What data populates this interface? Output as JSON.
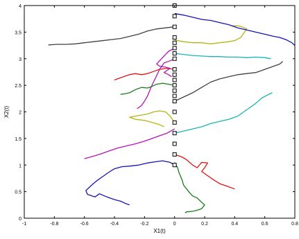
{
  "chart_data": {
    "type": "line",
    "title": "",
    "xlabel": "X1(t)",
    "ylabel": "X2(t)",
    "xlim": [
      -1,
      0.8
    ],
    "ylim": [
      0,
      4
    ],
    "xticks": [
      "-1",
      "-0.8",
      "-0.6",
      "-0.4",
      "-0.2",
      "0",
      "0.2",
      "0.4",
      "0.6",
      "0.8"
    ],
    "yticks": [
      "0",
      "0.5",
      "1",
      "1.5",
      "2",
      "2.5",
      "3",
      "3.5",
      "4"
    ],
    "grid": false,
    "legend": "none",
    "start_points": {
      "x": [
        0,
        0,
        0,
        0,
        0,
        0,
        0,
        0,
        0,
        0,
        0,
        0,
        0,
        0,
        0,
        0,
        0,
        0,
        0,
        0,
        0
      ],
      "y": [
        1.0,
        1.2,
        1.4,
        1.6,
        1.8,
        2.0,
        2.2,
        2.4,
        2.6,
        2.8,
        3.0,
        3.2,
        3.4,
        3.6,
        3.8,
        4.0,
        2.5,
        2.3,
        2.7,
        3.1,
        3.3
      ],
      "marker": "square-open"
    },
    "series": [
      {
        "color": "#1414b4",
        "points": [
          [
            0,
            1.0
          ],
          [
            -0.03,
            1.05
          ],
          [
            -0.08,
            1.08
          ],
          [
            -0.13,
            1.06
          ],
          [
            -0.18,
            1.04
          ],
          [
            -0.24,
            1.0
          ],
          [
            -0.3,
            0.98
          ],
          [
            -0.35,
            0.97
          ],
          [
            -0.4,
            0.93
          ],
          [
            -0.44,
            0.86
          ],
          [
            -0.48,
            0.78
          ],
          [
            -0.52,
            0.7
          ],
          [
            -0.56,
            0.6
          ],
          [
            -0.59,
            0.52
          ],
          [
            -0.58,
            0.45
          ],
          [
            -0.53,
            0.4
          ],
          [
            -0.5,
            0.46
          ],
          [
            -0.45,
            0.4
          ],
          [
            -0.4,
            0.35
          ],
          [
            -0.36,
            0.32
          ],
          [
            -0.32,
            0.27
          ],
          [
            -0.3,
            0.25
          ]
        ]
      },
      {
        "color": "#1a7a1a",
        "points": [
          [
            0,
            1.05
          ],
          [
            0.02,
            0.95
          ],
          [
            0.03,
            0.85
          ],
          [
            0.05,
            0.72
          ],
          [
            0.06,
            0.62
          ],
          [
            0.08,
            0.55
          ],
          [
            0.1,
            0.48
          ],
          [
            0.12,
            0.42
          ],
          [
            0.15,
            0.38
          ],
          [
            0.18,
            0.3
          ],
          [
            0.2,
            0.25
          ],
          [
            0.18,
            0.18
          ],
          [
            0.15,
            0.15
          ],
          [
            0.12,
            0.13
          ],
          [
            0.08,
            0.12
          ],
          [
            0.07,
            0.1
          ]
        ]
      },
      {
        "color": "#e01414",
        "points": [
          [
            0,
            1.2
          ],
          [
            0.05,
            1.15
          ],
          [
            0.08,
            1.1
          ],
          [
            0.1,
            1.05
          ],
          [
            0.12,
            1.0
          ],
          [
            0.15,
            0.95
          ],
          [
            0.18,
            1.05
          ],
          [
            0.22,
            1.04
          ],
          [
            0.2,
            0.95
          ],
          [
            0.18,
            0.88
          ],
          [
            0.22,
            0.8
          ],
          [
            0.26,
            0.72
          ],
          [
            0.3,
            0.65
          ],
          [
            0.35,
            0.6
          ],
          [
            0.4,
            0.55
          ]
        ]
      },
      {
        "color": "#18b4b4",
        "points": [
          [
            0,
            1.6
          ],
          [
            0.06,
            1.64
          ],
          [
            0.12,
            1.68
          ],
          [
            0.18,
            1.72
          ],
          [
            0.24,
            1.78
          ],
          [
            0.3,
            1.82
          ],
          [
            0.36,
            1.86
          ],
          [
            0.42,
            1.92
          ],
          [
            0.46,
            2.0
          ],
          [
            0.5,
            2.08
          ],
          [
            0.54,
            2.16
          ],
          [
            0.58,
            2.26
          ],
          [
            0.62,
            2.32
          ],
          [
            0.65,
            2.36
          ]
        ]
      },
      {
        "color": "#b414b4",
        "points": [
          [
            0,
            1.68
          ],
          [
            -0.05,
            1.6
          ],
          [
            -0.1,
            1.55
          ],
          [
            -0.15,
            1.5
          ],
          [
            -0.2,
            1.45
          ],
          [
            -0.26,
            1.4
          ],
          [
            -0.32,
            1.36
          ],
          [
            -0.38,
            1.32
          ],
          [
            -0.44,
            1.26
          ],
          [
            -0.5,
            1.2
          ],
          [
            -0.56,
            1.15
          ],
          [
            -0.6,
            1.12
          ]
        ]
      },
      {
        "color": "#b4b414",
        "points": [
          [
            0,
            1.8
          ],
          [
            -0.03,
            1.92
          ],
          [
            -0.06,
            2.0
          ],
          [
            -0.1,
            2.02
          ],
          [
            -0.14,
            2.0
          ],
          [
            -0.18,
            1.96
          ],
          [
            -0.22,
            1.94
          ],
          [
            -0.26,
            1.92
          ],
          [
            -0.3,
            1.9
          ],
          [
            -0.26,
            1.86
          ],
          [
            -0.2,
            1.84
          ],
          [
            -0.15,
            1.8
          ],
          [
            -0.1,
            1.76
          ],
          [
            -0.07,
            1.72
          ]
        ]
      },
      {
        "color": "#b414b4",
        "points": [
          [
            0,
            3.0
          ],
          [
            -0.03,
            2.96
          ],
          [
            -0.07,
            2.92
          ],
          [
            -0.1,
            2.8
          ],
          [
            -0.12,
            2.68
          ],
          [
            -0.14,
            2.56
          ],
          [
            -0.16,
            2.44
          ],
          [
            -0.18,
            2.3
          ],
          [
            -0.2,
            2.2
          ],
          [
            -0.22,
            2.12
          ],
          [
            -0.25,
            2.06
          ]
        ]
      },
      {
        "color": "#1a7a1a",
        "points": [
          [
            0,
            2.5
          ],
          [
            -0.04,
            2.52
          ],
          [
            -0.08,
            2.54
          ],
          [
            -0.12,
            2.52
          ],
          [
            -0.15,
            2.48
          ],
          [
            -0.18,
            2.45
          ],
          [
            -0.22,
            2.46
          ],
          [
            -0.26,
            2.42
          ],
          [
            -0.3,
            2.36
          ],
          [
            -0.33,
            2.34
          ],
          [
            -0.36,
            2.33
          ]
        ]
      },
      {
        "color": "#e01414",
        "points": [
          [
            0,
            2.8
          ],
          [
            -0.05,
            2.82
          ],
          [
            -0.1,
            2.8
          ],
          [
            -0.14,
            2.76
          ],
          [
            -0.18,
            2.72
          ],
          [
            -0.22,
            2.7
          ],
          [
            -0.26,
            2.72
          ],
          [
            -0.3,
            2.7
          ],
          [
            -0.34,
            2.66
          ],
          [
            -0.38,
            2.62
          ],
          [
            -0.4,
            2.6
          ]
        ]
      },
      {
        "color": "#404040",
        "points": [
          [
            0,
            2.2
          ],
          [
            0.06,
            2.28
          ],
          [
            0.12,
            2.36
          ],
          [
            0.18,
            2.46
          ],
          [
            0.24,
            2.56
          ],
          [
            0.3,
            2.62
          ],
          [
            0.36,
            2.66
          ],
          [
            0.42,
            2.7
          ],
          [
            0.48,
            2.72
          ],
          [
            0.54,
            2.74
          ],
          [
            0.6,
            2.8
          ],
          [
            0.66,
            2.86
          ],
          [
            0.7,
            2.9
          ],
          [
            0.72,
            2.95
          ]
        ]
      },
      {
        "color": "#404040",
        "points": [
          [
            0,
            3.6
          ],
          [
            -0.06,
            3.58
          ],
          [
            -0.12,
            3.56
          ],
          [
            -0.18,
            3.52
          ],
          [
            -0.24,
            3.46
          ],
          [
            -0.3,
            3.42
          ],
          [
            -0.36,
            3.38
          ],
          [
            -0.42,
            3.36
          ],
          [
            -0.48,
            3.34
          ],
          [
            -0.54,
            3.32
          ],
          [
            -0.6,
            3.3
          ],
          [
            -0.66,
            3.28
          ],
          [
            -0.72,
            3.27
          ],
          [
            -0.78,
            3.27
          ],
          [
            -0.84,
            3.26
          ]
        ]
      },
      {
        "color": "#18b4b4",
        "points": [
          [
            0,
            3.1
          ],
          [
            0.06,
            3.08
          ],
          [
            0.12,
            3.06
          ],
          [
            0.18,
            3.05
          ],
          [
            0.24,
            3.04
          ],
          [
            0.3,
            3.04
          ],
          [
            0.36,
            3.03
          ],
          [
            0.42,
            3.03
          ],
          [
            0.48,
            3.02
          ],
          [
            0.54,
            3.03
          ],
          [
            0.6,
            3.02
          ],
          [
            0.64,
            3.0
          ]
        ]
      },
      {
        "color": "#b4b414",
        "points": [
          [
            0,
            3.35
          ],
          [
            0.06,
            3.32
          ],
          [
            0.12,
            3.3
          ],
          [
            0.18,
            3.3
          ],
          [
            0.24,
            3.28
          ],
          [
            0.3,
            3.3
          ],
          [
            0.36,
            3.32
          ],
          [
            0.4,
            3.34
          ],
          [
            0.44,
            3.4
          ],
          [
            0.46,
            3.48
          ],
          [
            0.48,
            3.56
          ],
          [
            0.45,
            3.6
          ],
          [
            0.42,
            3.62
          ],
          [
            0.38,
            3.62
          ]
        ]
      },
      {
        "color": "#1414b4",
        "points": [
          [
            0,
            3.85
          ],
          [
            0.06,
            3.82
          ],
          [
            0.12,
            3.78
          ],
          [
            0.18,
            3.74
          ],
          [
            0.24,
            3.72
          ],
          [
            0.3,
            3.68
          ],
          [
            0.36,
            3.64
          ],
          [
            0.42,
            3.58
          ],
          [
            0.48,
            3.54
          ],
          [
            0.54,
            3.5
          ],
          [
            0.6,
            3.46
          ],
          [
            0.66,
            3.42
          ],
          [
            0.7,
            3.4
          ],
          [
            0.74,
            3.36
          ],
          [
            0.78,
            3.3
          ],
          [
            0.8,
            3.25
          ]
        ]
      },
      {
        "color": "#b414b4",
        "points": [
          [
            0,
            3.2
          ],
          [
            -0.04,
            3.14
          ],
          [
            -0.06,
            3.08
          ],
          [
            -0.08,
            3.02
          ],
          [
            -0.1,
            2.96
          ],
          [
            -0.12,
            2.9
          ],
          [
            -0.1,
            2.86
          ],
          [
            -0.06,
            2.84
          ],
          [
            -0.03,
            2.82
          ],
          [
            -0.05,
            2.78
          ],
          [
            -0.07,
            2.74
          ],
          [
            -0.04,
            2.7
          ],
          [
            -0.02,
            2.66
          ]
        ]
      }
    ]
  }
}
